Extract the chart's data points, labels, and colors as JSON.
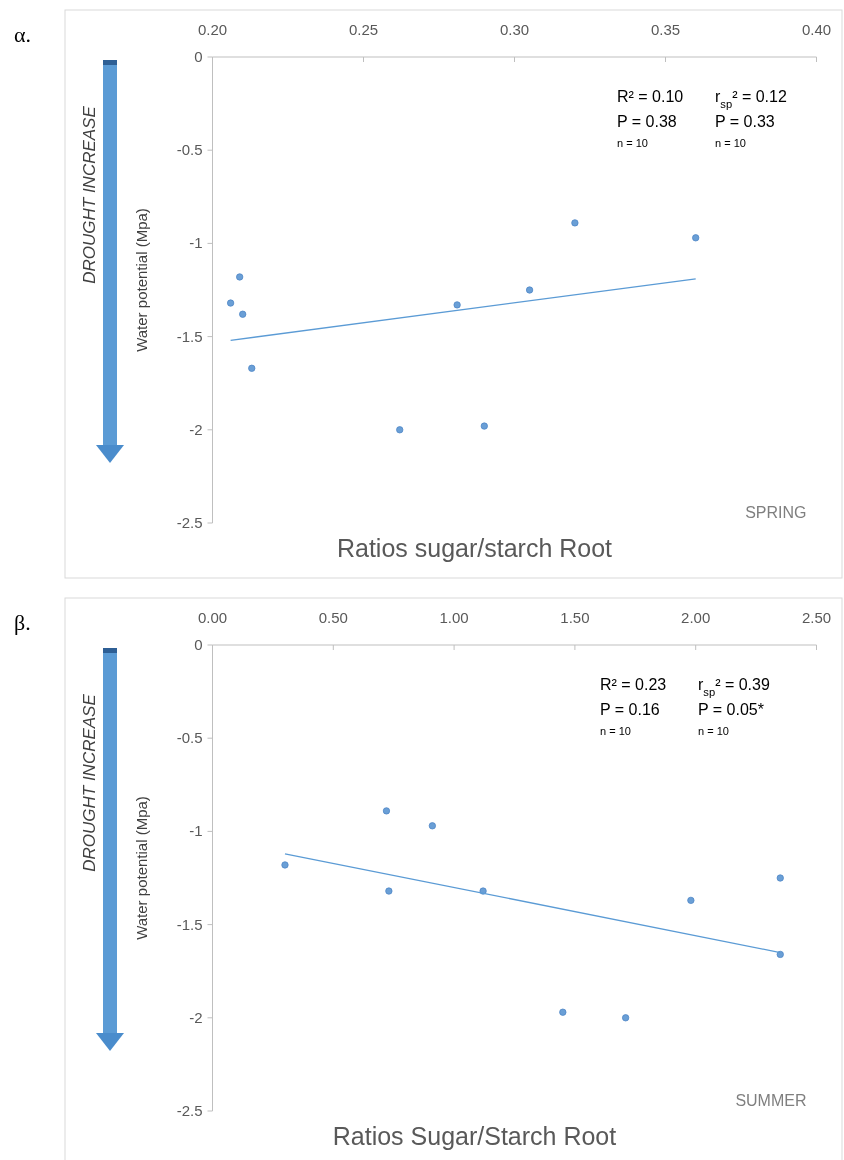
{
  "chart_data": [
    {
      "type": "scatter",
      "xlabel": "Ratios sugar/starch Root",
      "ylabel": "Water potential (Mpa)",
      "xlim": [
        0.2,
        0.4
      ],
      "xticks": [
        {
          "value": 0.2,
          "label": "0.20"
        },
        {
          "value": 0.25,
          "label": "0.25"
        },
        {
          "value": 0.3,
          "label": "0.30"
        },
        {
          "value": 0.35,
          "label": "0.35"
        },
        {
          "value": 0.4,
          "label": "0.40"
        }
      ],
      "ylim": [
        -2.5,
        0
      ],
      "yticks": [
        -2.5,
        -2,
        -1.5,
        -1,
        -0.5,
        0
      ],
      "grid": false,
      "marker": "circle",
      "series": [
        {
          "color": "#6a9fd6",
          "x": [
            0.209,
            0.32,
            0.36,
            0.305,
            0.206,
            0.21,
            0.213,
            0.262,
            0.29,
            0.281
          ],
          "values": [
            -1.18,
            -0.89,
            -0.97,
            -1.25,
            -1.32,
            -1.38,
            -1.67,
            -2.0,
            -1.98,
            -1.33
          ]
        },
        {
          "type": "line",
          "color": "#5b9bd5",
          "marker": "none",
          "line_style": "solid",
          "x": [
            0.206,
            0.36
          ],
          "values": [
            -1.52,
            -1.19
          ]
        }
      ],
      "annotations": [
        "R² = 0.10",
        "P  = 0.38",
        "n  = 10",
        "r$_{sp}$² = 0.12",
        "P = 0.33",
        "n  = 10",
        "SPRING",
        "α.",
        "DROUGHT INCREASE"
      ]
    },
    {
      "type": "scatter",
      "xlabel": "Ratios Sugar/Starch Root",
      "ylabel": "Water potential (Mpa)",
      "xlim": [
        0,
        2.5
      ],
      "xticks": [
        {
          "value": 0,
          "label": "0.00"
        },
        {
          "value": 0.5,
          "label": "0.50"
        },
        {
          "value": 1,
          "label": "1.00"
        },
        {
          "value": 1.5,
          "label": "1.50"
        },
        {
          "value": 2,
          "label": "2.00"
        },
        {
          "value": 2.5,
          "label": "2.50"
        }
      ],
      "ylim": [
        -2.5,
        0
      ],
      "yticks": [
        -2.5,
        -2,
        -1.5,
        -1,
        -0.5,
        0
      ],
      "grid": false,
      "marker": "circle",
      "series": [
        {
          "color": "#6a9fd6",
          "x": [
            0.3,
            0.72,
            0.91,
            2.35,
            0.73,
            1.12,
            1.98,
            2.35,
            1.45,
            1.71
          ],
          "values": [
            -1.18,
            -0.89,
            -0.97,
            -1.25,
            -1.32,
            -1.32,
            -1.37,
            -1.66,
            -1.97,
            -2.0
          ]
        },
        {
          "type": "line",
          "color": "#5b9bd5",
          "marker": "none",
          "line_style": "solid",
          "x": [
            0.3,
            2.35
          ],
          "values": [
            -1.12,
            -1.65
          ]
        }
      ],
      "annotations": [
        "R² = 0.23",
        "P = 0.16",
        "n = 10",
        "r$_{sp}$² = 0.39",
        "P = 0.05*",
        "n = 10",
        "SUMMER",
        "β.",
        "DROUGHT INCREASE"
      ]
    }
  ]
}
